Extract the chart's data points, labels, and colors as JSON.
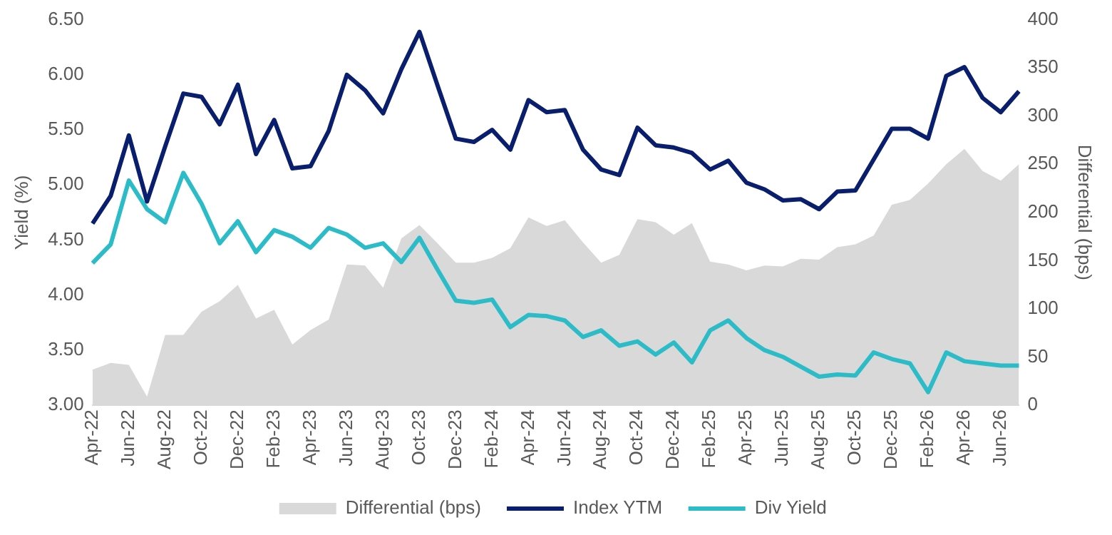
{
  "chart_data": {
    "type": "line",
    "ylabel": "Yield (%)",
    "y2label": "Differential (bps)",
    "categories": [
      "Apr-22",
      null,
      "Jun-22",
      null,
      "Aug-22",
      null,
      "Oct-22",
      null,
      "Dec-22",
      null,
      "Feb-23",
      null,
      "Apr-23",
      null,
      "Jun-23",
      null,
      "Aug-23",
      null,
      "Oct-23",
      null,
      "Dec-23",
      null,
      "Feb-24",
      null,
      "Apr-24",
      null,
      "Jun-24",
      null,
      "Aug-24",
      null,
      "Oct-24",
      null,
      "Dec-24",
      null,
      "Feb-25",
      null,
      "Apr-25",
      null,
      "Jun-25",
      null,
      "Aug-25",
      null,
      "Oct-25",
      null,
      "Dec-25",
      null,
      "Feb-26",
      null,
      "Apr-26",
      null,
      "Jun-26",
      null
    ],
    "series": [
      {
        "name": "Differential (bps)",
        "type": "area",
        "axis": "y2",
        "color": "#d9d9d9",
        "values": [
          37,
          44,
          42,
          9,
          73,
          73,
          97,
          108,
          125,
          90,
          99,
          63,
          78,
          89,
          146,
          145,
          122,
          173,
          187,
          168,
          148,
          148,
          153,
          163,
          195,
          186,
          192,
          169,
          148,
          156,
          193,
          190,
          177,
          189,
          149,
          146,
          140,
          145,
          144,
          152,
          151,
          164,
          167,
          176,
          208,
          213,
          230,
          250,
          266,
          243,
          233,
          250
        ]
      },
      {
        "name": "Index YTM",
        "color": "#0a1e6e",
        "values": [
          4.65,
          4.9,
          5.45,
          4.85,
          5.35,
          5.83,
          5.8,
          5.55,
          5.91,
          5.28,
          5.59,
          5.15,
          5.17,
          5.49,
          6.0,
          5.86,
          5.65,
          6.05,
          6.39,
          5.9,
          5.42,
          5.39,
          5.5,
          5.32,
          5.77,
          5.66,
          5.68,
          5.32,
          5.14,
          5.09,
          5.52,
          5.36,
          5.34,
          5.29,
          5.14,
          5.22,
          5.02,
          4.96,
          4.86,
          4.87,
          4.78,
          4.94,
          4.95,
          5.23,
          5.51,
          5.51,
          5.42,
          5.99,
          6.07,
          5.79,
          5.66,
          5.85
        ]
      },
      {
        "name": "Div Yield",
        "color": "#2bbcc8",
        "values": [
          4.29,
          4.46,
          5.04,
          4.78,
          4.66,
          5.11,
          4.83,
          4.47,
          4.67,
          4.39,
          4.59,
          4.53,
          4.43,
          4.61,
          4.55,
          4.43,
          4.47,
          4.3,
          4.52,
          4.23,
          3.95,
          3.93,
          3.96,
          3.71,
          3.82,
          3.81,
          3.77,
          3.62,
          3.68,
          3.54,
          3.58,
          3.46,
          3.57,
          3.39,
          3.68,
          3.77,
          3.61,
          3.5,
          3.44,
          3.35,
          3.26,
          3.28,
          3.27,
          3.48,
          3.42,
          3.38,
          3.12,
          3.48,
          3.4,
          3.38,
          3.36,
          3.36
        ]
      }
    ],
    "ylim": [
      3,
      6.5
    ],
    "yticks": [
      {
        "value": 3,
        "label": "3.00"
      },
      {
        "value": 3.5,
        "label": "3.50"
      },
      {
        "value": 4,
        "label": "4.00"
      },
      {
        "value": 4.5,
        "label": "4.50"
      },
      {
        "value": 5,
        "label": "5.00"
      },
      {
        "value": 5.5,
        "label": "5.50"
      },
      {
        "value": 6,
        "label": "6.00"
      },
      {
        "value": 6.5,
        "label": "6.50"
      }
    ],
    "y2lim": [
      0,
      400
    ],
    "y2ticks": [
      0,
      50,
      100,
      150,
      200,
      250,
      300,
      350,
      400
    ],
    "grid": false,
    "legend": "bottom",
    "marker": "none",
    "line_style": "solid"
  }
}
